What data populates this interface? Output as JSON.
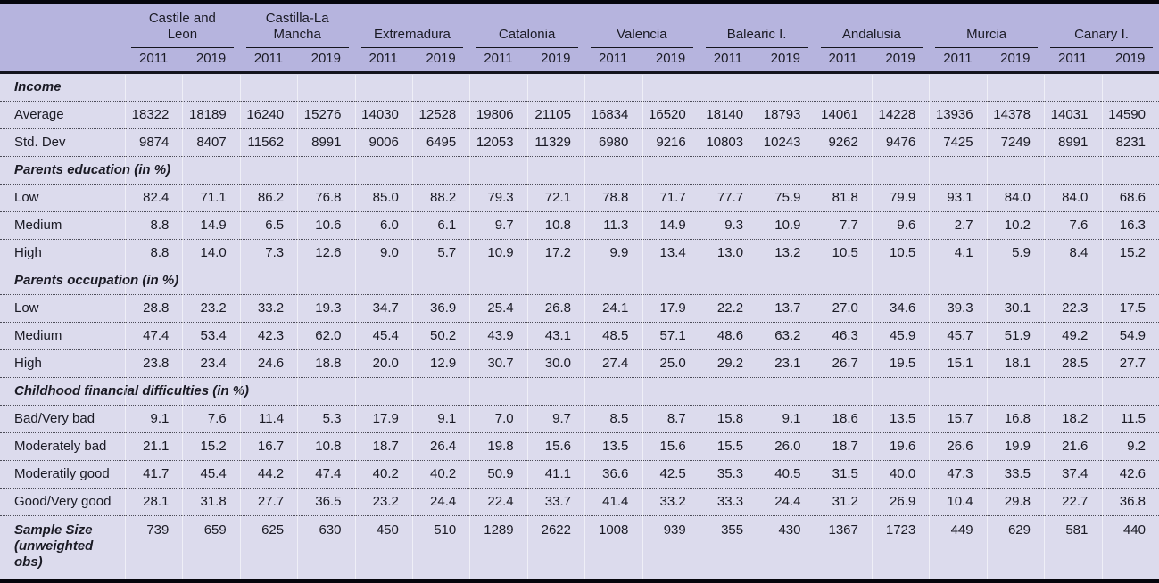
{
  "colors": {
    "header_bg": "#b6b4de",
    "body_bg": "#dcdbed",
    "rule": "#14141d",
    "dotted": "#4c4c58",
    "text": "#1a1a24",
    "column_divider": "rgba(255,255,255,0.55)"
  },
  "table": {
    "groups": [
      {
        "name": "Castile and Leon",
        "years": [
          "2011",
          "2019"
        ]
      },
      {
        "name": "Castilla-La Mancha",
        "years": [
          "2011",
          "2019"
        ]
      },
      {
        "name": "Extremadura",
        "years": [
          "2011",
          "2019"
        ]
      },
      {
        "name": "Catalonia",
        "years": [
          "2011",
          "2019"
        ]
      },
      {
        "name": "Valencia",
        "years": [
          "2011",
          "2019"
        ]
      },
      {
        "name": "Balearic I.",
        "years": [
          "2011",
          "2019"
        ]
      },
      {
        "name": "Andalusia",
        "years": [
          "2011",
          "2019"
        ]
      },
      {
        "name": "Murcia",
        "years": [
          "2011",
          "2019"
        ]
      },
      {
        "name": "Canary I.",
        "years": [
          "2011",
          "2019"
        ]
      }
    ],
    "rows": [
      {
        "type": "section",
        "label": "Income"
      },
      {
        "type": "data",
        "label": "Average",
        "values": [
          "18322",
          "18189",
          "16240",
          "15276",
          "14030",
          "12528",
          "19806",
          "21105",
          "16834",
          "16520",
          "18140",
          "18793",
          "14061",
          "14228",
          "13936",
          "14378",
          "14031",
          "14590"
        ]
      },
      {
        "type": "data",
        "label": "Std. Dev",
        "values": [
          "9874",
          "8407",
          "11562",
          "8991",
          "9006",
          "6495",
          "12053",
          "11329",
          "6980",
          "9216",
          "10803",
          "10243",
          "9262",
          "9476",
          "7425",
          "7249",
          "8991",
          "8231"
        ]
      },
      {
        "type": "section",
        "label": "Parents education (in %)"
      },
      {
        "type": "data",
        "label": "Low",
        "values": [
          "82.4",
          "71.1",
          "86.2",
          "76.8",
          "85.0",
          "88.2",
          "79.3",
          "72.1",
          "78.8",
          "71.7",
          "77.7",
          "75.9",
          "81.8",
          "79.9",
          "93.1",
          "84.0",
          "84.0",
          "68.6"
        ]
      },
      {
        "type": "data",
        "label": "Medium",
        "values": [
          "8.8",
          "14.9",
          "6.5",
          "10.6",
          "6.0",
          "6.1",
          "9.7",
          "10.8",
          "11.3",
          "14.9",
          "9.3",
          "10.9",
          "7.7",
          "9.6",
          "2.7",
          "10.2",
          "7.6",
          "16.3"
        ]
      },
      {
        "type": "data",
        "label": "High",
        "values": [
          "8.8",
          "14.0",
          "7.3",
          "12.6",
          "9.0",
          "5.7",
          "10.9",
          "17.2",
          "9.9",
          "13.4",
          "13.0",
          "13.2",
          "10.5",
          "10.5",
          "4.1",
          "5.9",
          "8.4",
          "15.2"
        ]
      },
      {
        "type": "section",
        "label": "Parents occupation (in %)"
      },
      {
        "type": "data",
        "label": "Low",
        "values": [
          "28.8",
          "23.2",
          "33.2",
          "19.3",
          "34.7",
          "36.9",
          "25.4",
          "26.8",
          "24.1",
          "17.9",
          "22.2",
          "13.7",
          "27.0",
          "34.6",
          "39.3",
          "30.1",
          "22.3",
          "17.5"
        ]
      },
      {
        "type": "data",
        "label": "Medium",
        "values": [
          "47.4",
          "53.4",
          "42.3",
          "62.0",
          "45.4",
          "50.2",
          "43.9",
          "43.1",
          "48.5",
          "57.1",
          "48.6",
          "63.2",
          "46.3",
          "45.9",
          "45.7",
          "51.9",
          "49.2",
          "54.9"
        ]
      },
      {
        "type": "data",
        "label": "High",
        "values": [
          "23.8",
          "23.4",
          "24.6",
          "18.8",
          "20.0",
          "12.9",
          "30.7",
          "30.0",
          "27.4",
          "25.0",
          "29.2",
          "23.1",
          "26.7",
          "19.5",
          "15.1",
          "18.1",
          "28.5",
          "27.7"
        ]
      },
      {
        "type": "section",
        "label": "Childhood financial difficulties (in %)"
      },
      {
        "type": "data",
        "label": "Bad/Very bad",
        "values": [
          "9.1",
          "7.6",
          "11.4",
          "5.3",
          "17.9",
          "9.1",
          "7.0",
          "9.7",
          "8.5",
          "8.7",
          "15.8",
          "9.1",
          "18.6",
          "13.5",
          "15.7",
          "16.8",
          "18.2",
          "11.5"
        ]
      },
      {
        "type": "data",
        "label": "Moderately bad",
        "values": [
          "21.1",
          "15.2",
          "16.7",
          "10.8",
          "18.7",
          "26.4",
          "19.8",
          "15.6",
          "13.5",
          "15.6",
          "15.5",
          "26.0",
          "18.7",
          "19.6",
          "26.6",
          "19.9",
          "21.6",
          "9.2"
        ]
      },
      {
        "type": "data",
        "label": "Moderatily good",
        "values": [
          "41.7",
          "45.4",
          "44.2",
          "47.4",
          "40.2",
          "40.2",
          "50.9",
          "41.1",
          "36.6",
          "42.5",
          "35.3",
          "40.5",
          "31.5",
          "40.0",
          "47.3",
          "33.5",
          "37.4",
          "42.6"
        ]
      },
      {
        "type": "data",
        "label": "Good/Very good",
        "values": [
          "28.1",
          "31.8",
          "27.7",
          "36.5",
          "23.2",
          "24.4",
          "22.4",
          "33.7",
          "41.4",
          "33.2",
          "33.3",
          "24.4",
          "31.2",
          "26.9",
          "10.4",
          "29.8",
          "22.7",
          "36.8"
        ]
      },
      {
        "type": "sample",
        "label": "Sample Size (unweighted obs)",
        "values": [
          "739",
          "659",
          "625",
          "630",
          "450",
          "510",
          "1289",
          "2622",
          "1008",
          "939",
          "355",
          "430",
          "1367",
          "1723",
          "449",
          "629",
          "581",
          "440"
        ]
      }
    ]
  }
}
